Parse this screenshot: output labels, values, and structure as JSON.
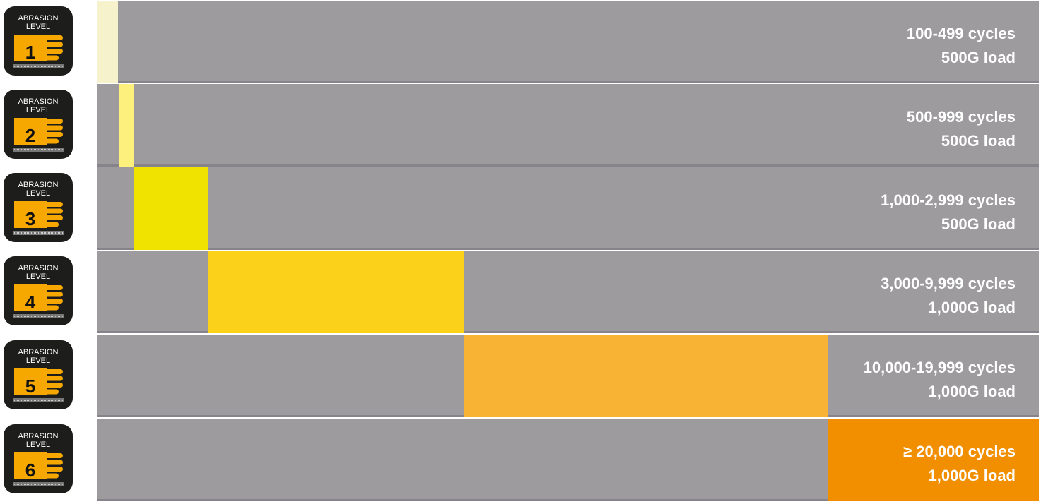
{
  "levels": [
    {
      "badge": {
        "line1": "ABRASION",
        "line2": "LEVEL",
        "number": "1"
      },
      "cycles": "100-499 cycles",
      "load": "500G load"
    },
    {
      "badge": {
        "line1": "ABRASION",
        "line2": "LEVEL",
        "number": "2"
      },
      "cycles": "500-999 cycles",
      "load": "500G load"
    },
    {
      "badge": {
        "line1": "ABRASION",
        "line2": "LEVEL",
        "number": "3"
      },
      "cycles": "1,000-2,999 cycles",
      "load": "500G load"
    },
    {
      "badge": {
        "line1": "ABRASION",
        "line2": "LEVEL",
        "number": "4"
      },
      "cycles": "3,000-9,999 cycles",
      "load": "1,000G load"
    },
    {
      "badge": {
        "line1": "ABRASION",
        "line2": "LEVEL",
        "number": "5"
      },
      "cycles": "10,000-19,999 cycles",
      "load": "1,000G load"
    },
    {
      "badge": {
        "line1": "ABRASION",
        "line2": "LEVEL",
        "number": "6"
      },
      "cycles": "≥ 20,000 cycles",
      "load": "1,000G load"
    }
  ]
}
